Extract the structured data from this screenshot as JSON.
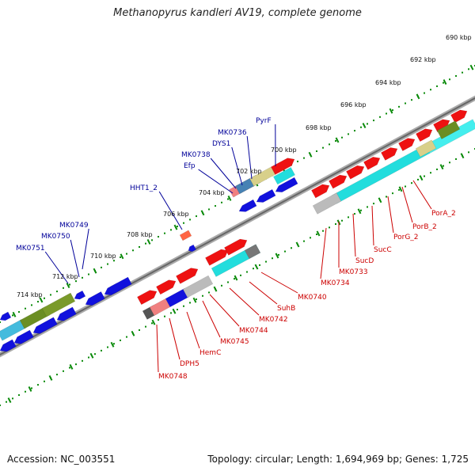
{
  "title": "Methanopyrus kandleri AV19, complete genome",
  "footer": {
    "accession": "Accession: NC_003551",
    "topology": "Topology: circular; Length: 1,694,969 bp; Genes: 1,725"
  },
  "ticks": [
    "690 kbp",
    "692 kbp",
    "694 kbp",
    "696 kbp",
    "698 kbp",
    "700 kbp",
    "702 kbp",
    "704 kbp",
    "706 kbp",
    "708 kbp",
    "710 kbp",
    "712 kbp",
    "714 kbp"
  ],
  "upper_labels": [
    "PyrF",
    "MK0736",
    "DYS1",
    "MK0738",
    "Efp",
    "HHT1_2",
    "MK0749",
    "MK0750",
    "MK0751"
  ],
  "lower_labels": [
    "PorA_2",
    "PorB_2",
    "PorG_2",
    "SucC",
    "SucD",
    "MK0733",
    "MK0734",
    "MK0740",
    "SuhB",
    "MK0742",
    "MK0744",
    "MK0745",
    "HemC",
    "DPH5",
    "MK0748"
  ],
  "colors": {
    "forward": "#ee1111",
    "reverse": "#1111dd",
    "label_forward": "#cc0000",
    "label_reverse": "#000099",
    "cyan": "#22dddd",
    "olive": "#6b8e23",
    "khaki": "#d8d08a",
    "grey": "#bbbbbb",
    "backbone": "#888888",
    "tick_green": "#0a8a0a"
  }
}
